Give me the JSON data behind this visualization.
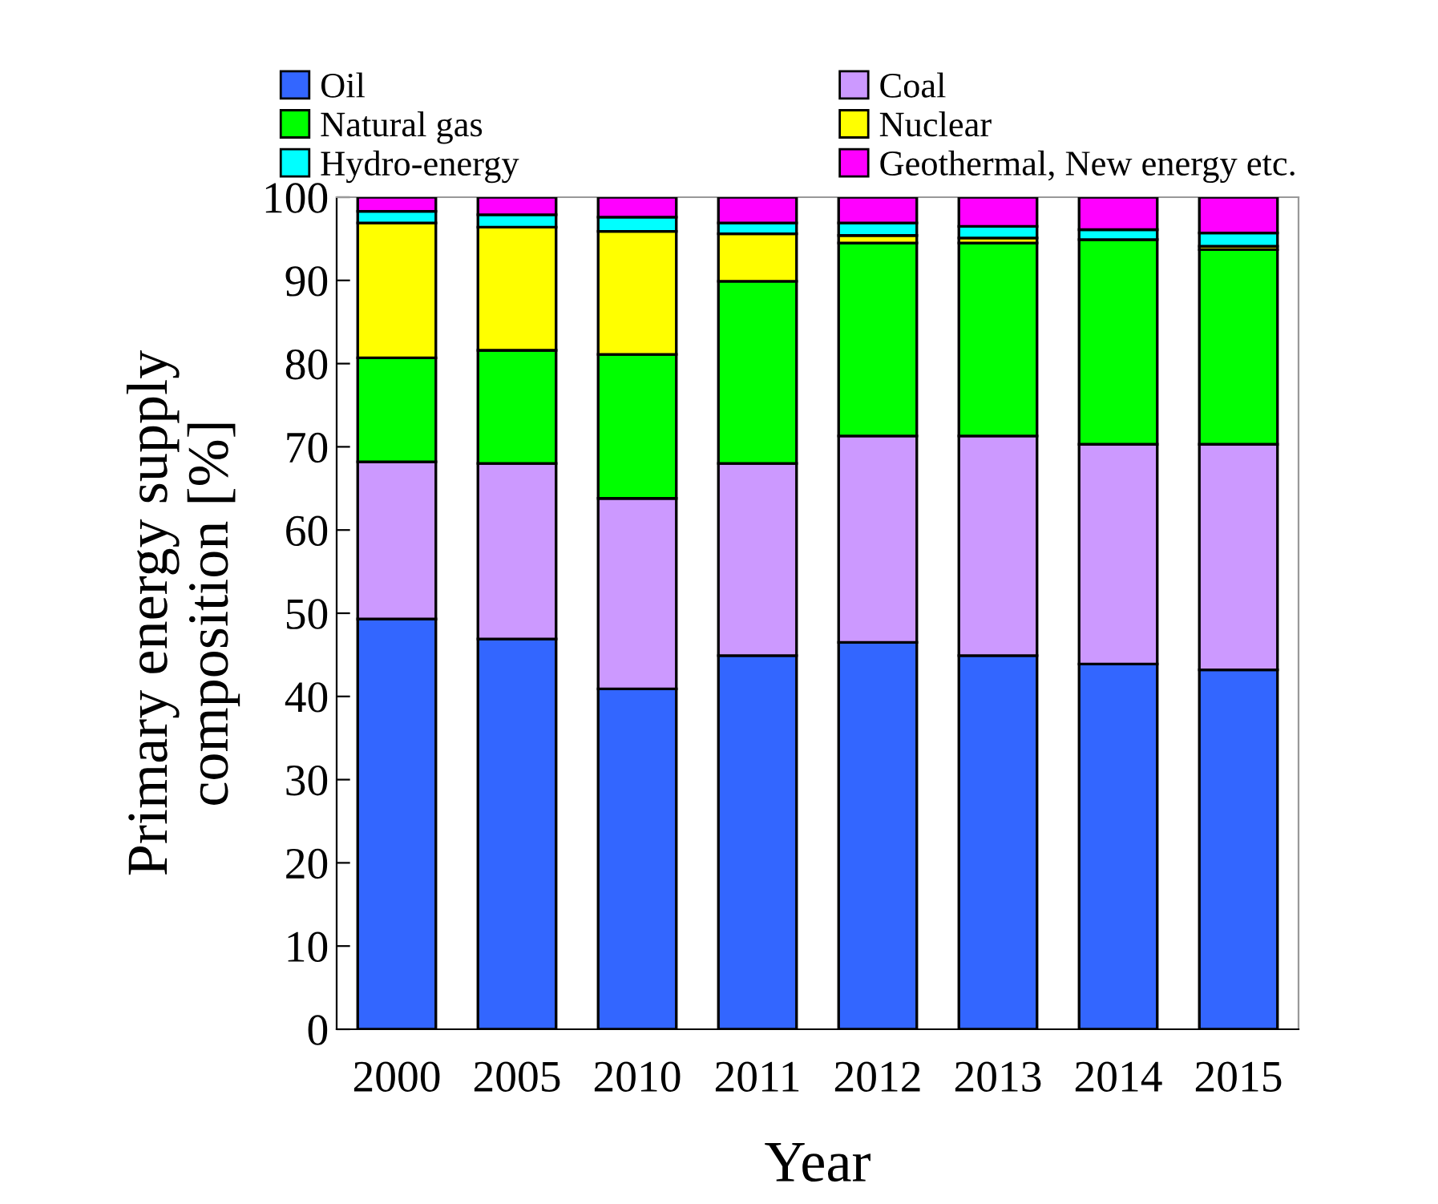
{
  "chart_data": {
    "type": "bar",
    "stacked": true,
    "xlabel": "Year",
    "ylabel": "Primary energy supply\ncomposition [%]",
    "categories": [
      "2000",
      "2005",
      "2010",
      "2011",
      "2012",
      "2013",
      "2014",
      "2015"
    ],
    "series": [
      {
        "name": "Oil",
        "color": "#3366ff",
        "values": [
          49.3,
          46.9,
          40.9,
          44.9,
          46.5,
          44.9,
          43.9,
          43.2
        ]
      },
      {
        "name": "Coal",
        "color": "#cc99ff",
        "values": [
          18.9,
          21.1,
          22.9,
          23.1,
          24.8,
          26.4,
          26.4,
          27.1
        ]
      },
      {
        "name": "Natural gas",
        "color": "#00ff00",
        "values": [
          12.5,
          13.6,
          17.3,
          21.9,
          23.2,
          23.2,
          24.6,
          23.4
        ]
      },
      {
        "name": "Nuclear",
        "color": "#ffff00",
        "values": [
          16.2,
          14.8,
          14.8,
          5.7,
          0.9,
          0.6,
          0,
          0.4
        ]
      },
      {
        "name": "Hydro-energy",
        "color": "#00ffff",
        "values": [
          1.4,
          1.5,
          1.7,
          1.3,
          1.5,
          1.4,
          1.2,
          1.6
        ]
      },
      {
        "name": "Geothermal, New energy etc.",
        "color": "#ff00ff",
        "values": [
          1.7,
          2.1,
          2.4,
          3.1,
          3.1,
          3.5,
          3.9,
          4.3
        ]
      }
    ],
    "ylim": [
      0,
      100
    ],
    "yticks": [
      0,
      10,
      20,
      30,
      40,
      50,
      60,
      70,
      80,
      90,
      100
    ],
    "grid": false,
    "legend": "top"
  }
}
